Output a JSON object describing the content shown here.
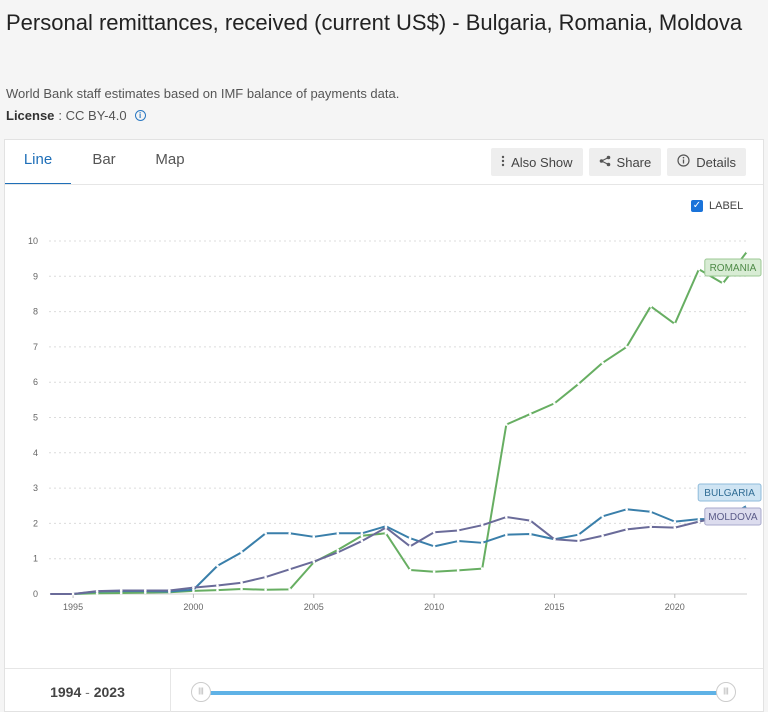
{
  "page": {
    "title": "Personal remittances, received (current US$) - Bulgaria, Romania, Moldova",
    "subtitle": "World Bank staff estimates based on IMF balance of payments data.",
    "license_label": "License",
    "license_value": ": CC BY-4.0",
    "info_icon": "info-icon"
  },
  "tabs": [
    {
      "label": "Line",
      "active": true
    },
    {
      "label": "Bar",
      "active": false
    },
    {
      "label": "Map",
      "active": false
    }
  ],
  "toolbar": {
    "also_show": "Also Show",
    "share": "Share",
    "details": "Details"
  },
  "label_toggle": {
    "label": "LABEL",
    "checked": true
  },
  "footer": {
    "range_start": "1994",
    "range_sep": "-",
    "range_end": "2023"
  },
  "colors": {
    "bulgaria": "#3a7faa",
    "romania": "#67ae62",
    "moldova": "#6a6b99",
    "accent": "#1f6fb8"
  },
  "chart_data": {
    "type": "line",
    "x": [
      1994,
      1995,
      1996,
      1997,
      1998,
      1999,
      2000,
      2001,
      2002,
      2003,
      2004,
      2005,
      2006,
      2007,
      2008,
      2009,
      2010,
      2011,
      2012,
      2013,
      2014,
      2015,
      2016,
      2017,
      2018,
      2019,
      2020,
      2021,
      2022,
      2023
    ],
    "ylim": [
      0,
      10
    ],
    "yticks": [
      0,
      1,
      2,
      3,
      4,
      5,
      6,
      7,
      8,
      9,
      10
    ],
    "xticks": [
      1995,
      2000,
      2005,
      2010,
      2015,
      2020
    ],
    "grid": true,
    "series": [
      {
        "name": "ROMANIA",
        "color": "#67ae62",
        "values": [
          0.0,
          0.0,
          0.02,
          0.03,
          0.04,
          0.05,
          0.09,
          0.11,
          0.14,
          0.12,
          0.13,
          0.9,
          1.25,
          1.65,
          1.72,
          0.68,
          0.63,
          0.67,
          0.72,
          4.8,
          5.1,
          5.4,
          5.95,
          6.55,
          7.0,
          8.15,
          7.65,
          9.2,
          8.8,
          9.7
        ]
      },
      {
        "name": "BULGARIA",
        "color": "#3a7faa",
        "values": [
          0.0,
          0.0,
          0.07,
          0.08,
          0.08,
          0.07,
          0.12,
          0.8,
          1.18,
          1.72,
          1.72,
          1.62,
          1.72,
          1.72,
          1.92,
          1.58,
          1.35,
          1.5,
          1.45,
          1.68,
          1.7,
          1.55,
          1.68,
          2.2,
          2.4,
          2.33,
          2.05,
          2.12,
          2.12,
          2.5
        ]
      },
      {
        "name": "MOLDOVA",
        "color": "#6a6b99",
        "values": [
          0.0,
          0.0,
          0.08,
          0.1,
          0.1,
          0.1,
          0.18,
          0.24,
          0.32,
          0.48,
          0.7,
          0.92,
          1.18,
          1.5,
          1.88,
          1.35,
          1.75,
          1.8,
          1.95,
          2.18,
          2.08,
          1.55,
          1.5,
          1.65,
          1.83,
          1.9,
          1.88,
          2.05,
          2.2,
          2.2
        ]
      }
    ]
  }
}
